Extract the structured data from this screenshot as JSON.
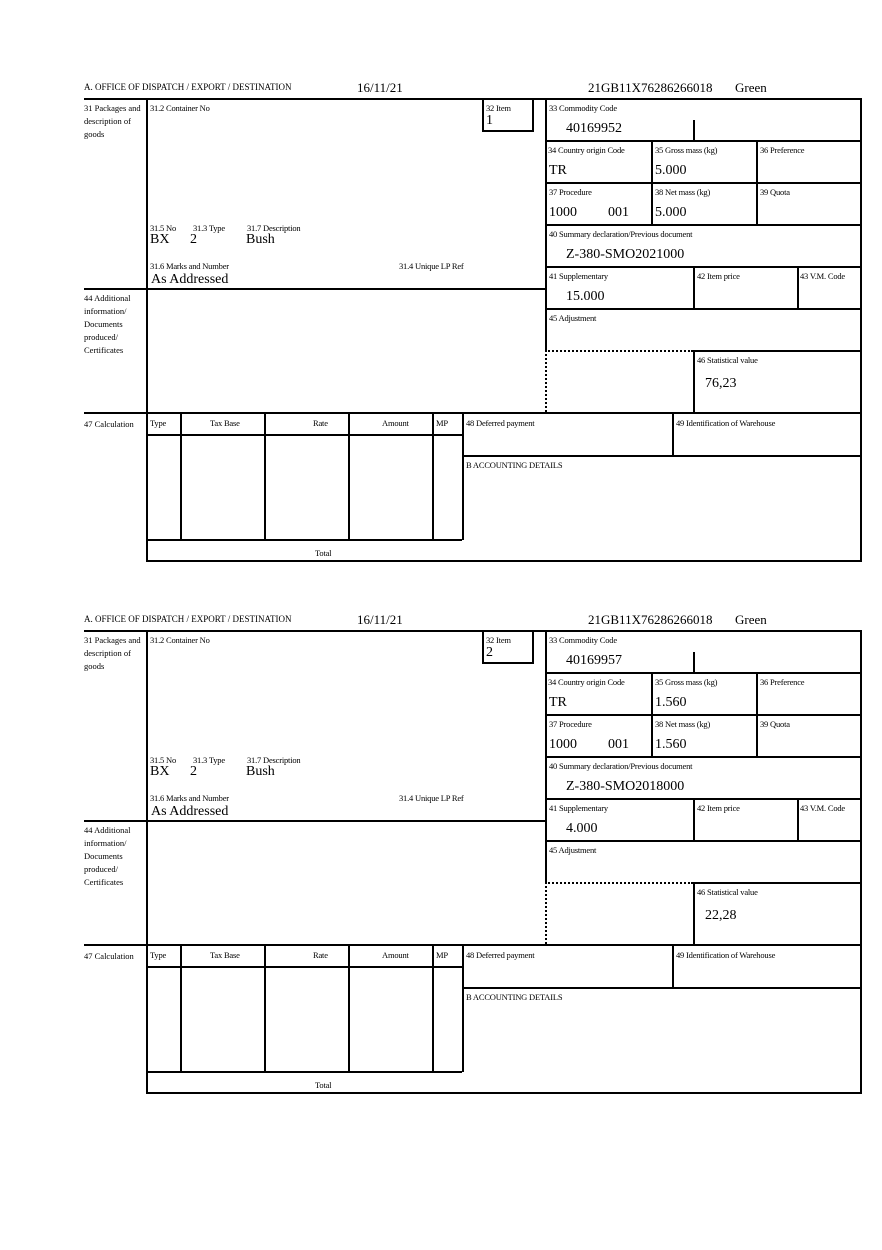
{
  "labels": {
    "office": "A.  OFFICE OF DISPATCH / EXPORT / DESTINATION",
    "packages": "31 Packages and description of goods",
    "container": "31.2 Container No",
    "no": "31.5 No",
    "type": "31.3 Type",
    "description": "31.7 Description",
    "marks": "31.6 Marks and Number",
    "unique_ref": "31.4 Unique LP Ref",
    "item": "32 Item",
    "commodity": "33 Commodity Code",
    "country": "34 Country origin Code",
    "gross": "35 Gross mass (kg)",
    "preference": "36 Preference",
    "procedure": "37 Procedure",
    "net": "38 Net mass (kg)",
    "quota": "39 Quota",
    "summary": "40 Summary declaration/Previous document",
    "supplementary": "41 Supplementary",
    "item_price": "42 Item price",
    "vm_code": "43 V.M. Code",
    "additional": "44 Additional information/ Documents produced/ Certificates",
    "adjustment": "45 Adjustment",
    "statistical": "46 Statistical value",
    "calculation": "47 Calculation",
    "calc_type": "Type",
    "calc_tax_base": "Tax Base",
    "calc_rate": "Rate",
    "calc_amount": "Amount",
    "calc_mp": "MP",
    "total": "Total",
    "deferred": "48 Deferred payment",
    "warehouse": "49 Identification of Warehouse",
    "accounting": "B ACCOUNTING DETAILS"
  },
  "items": [
    {
      "date": "16/11/21",
      "reference": "21GB11X76286266018",
      "route": "Green",
      "item_no": "1",
      "commodity_code": "40169952",
      "country_origin": "TR",
      "gross_mass": "5.000",
      "procedure": "1000",
      "procedure_sub": "001",
      "net_mass": "5.000",
      "previous_document": "Z-380-SMO2021000",
      "supplementary": "15.000",
      "statistical_value": "76,23",
      "package_no": "BX",
      "package_type": "2",
      "package_description": "Bush",
      "marks": "As Addressed"
    },
    {
      "date": "16/11/21",
      "reference": "21GB11X76286266018",
      "route": "Green",
      "item_no": "2",
      "commodity_code": "40169957",
      "country_origin": "TR",
      "gross_mass": "1.560",
      "procedure": "1000",
      "procedure_sub": "001",
      "net_mass": "1.560",
      "previous_document": "Z-380-SMO2018000",
      "supplementary": "4.000",
      "statistical_value": "22,28",
      "package_no": "BX",
      "package_type": "2",
      "package_description": "Bush",
      "marks": "As Addressed"
    }
  ]
}
